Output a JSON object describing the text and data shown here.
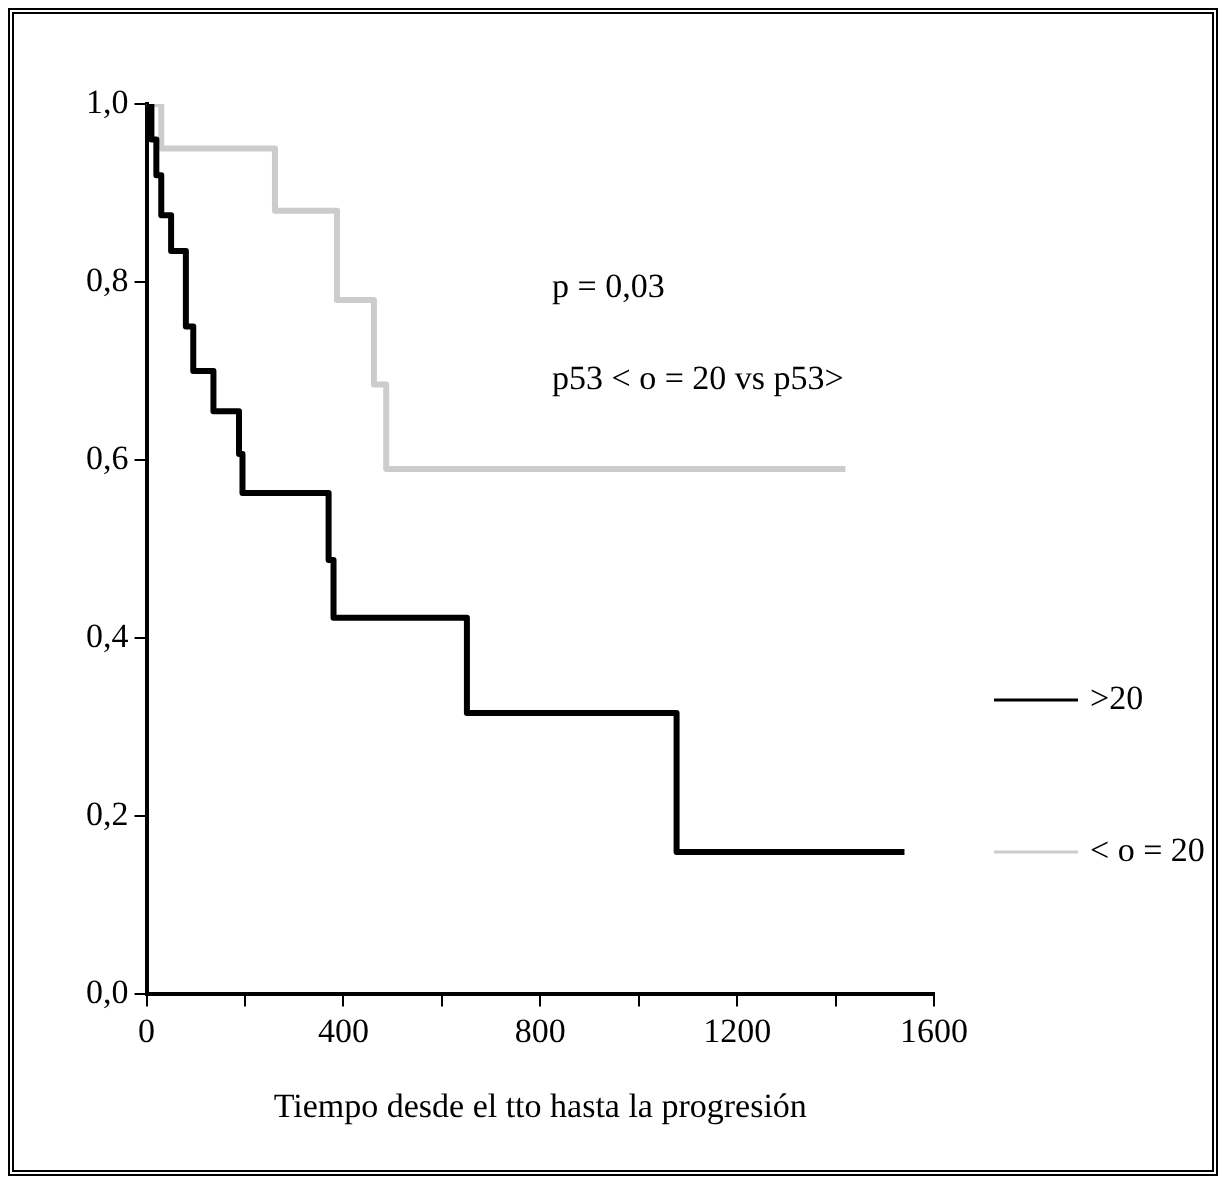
{
  "chart_data": {
    "type": "step",
    "xlabel": "Tiempo desde el tto hasta la progresión",
    "legend_title": "p53 < o = 20 vs p53>",
    "annotations": [
      "p = 0,03"
    ],
    "xlim": [
      0,
      1600
    ],
    "xticks": [
      0,
      {
        "value": 200,
        "label": null
      },
      400,
      {
        "value": 600,
        "label": null
      },
      800,
      {
        "value": 1000,
        "label": null
      },
      1200,
      {
        "value": 1400,
        "label": null
      },
      1600
    ],
    "ylim": [
      0,
      1
    ],
    "yticks": [
      {
        "value": 0,
        "label": "0,0"
      },
      {
        "value": 0.2,
        "label": "0,2"
      },
      {
        "value": 0.4,
        "label": "0,4"
      },
      {
        "value": 0.6,
        "label": "0,6"
      },
      {
        "value": 0.8,
        "label": "0,8"
      },
      {
        "value": 1,
        "label": "1,0"
      }
    ],
    "grid": false,
    "legend": "right",
    "marker": "none",
    "line_style": "solid",
    "series": [
      {
        "name": ">20",
        "color": "#000000",
        "x": [
          0,
          10,
          20,
          30,
          50,
          80,
          95,
          136,
          188,
          195,
          370,
          380,
          651,
          1077,
          1540
        ],
        "values": [
          1,
          0.96,
          0.92,
          0.875,
          0.835,
          0.75,
          0.7,
          0.655,
          0.607,
          0.563,
          0.488,
          0.423,
          0.316,
          0.16,
          0.16
        ]
      },
      {
        "name": "< o = 20",
        "color": "#cccccc",
        "x": [
          0,
          30,
          261,
          387,
          462,
          487,
          1420
        ],
        "values": [
          1,
          0.95,
          0.88,
          0.78,
          0.685,
          0.59,
          0.59
        ]
      }
    ]
  }
}
